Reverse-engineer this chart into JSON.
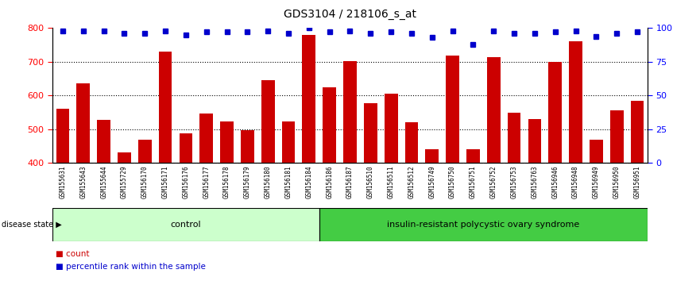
{
  "title": "GDS3104 / 218106_s_at",
  "categories": [
    "GSM155631",
    "GSM155643",
    "GSM155644",
    "GSM155729",
    "GSM156170",
    "GSM156171",
    "GSM156176",
    "GSM156177",
    "GSM156178",
    "GSM156179",
    "GSM156180",
    "GSM156181",
    "GSM156184",
    "GSM156186",
    "GSM156187",
    "GSM156510",
    "GSM156511",
    "GSM156512",
    "GSM156749",
    "GSM156750",
    "GSM156751",
    "GSM156752",
    "GSM156753",
    "GSM156763",
    "GSM156946",
    "GSM156948",
    "GSM156949",
    "GSM156950",
    "GSM156951"
  ],
  "bar_values": [
    560,
    635,
    527,
    432,
    470,
    730,
    487,
    547,
    523,
    497,
    645,
    523,
    780,
    625,
    703,
    578,
    605,
    520,
    440,
    718,
    440,
    715,
    550,
    530,
    700,
    760,
    470,
    557,
    585
  ],
  "percentile_values": [
    98,
    98,
    98,
    96,
    96,
    98,
    95,
    97,
    97,
    97,
    98,
    96,
    100,
    97,
    98,
    96,
    97,
    96,
    93,
    98,
    88,
    98,
    96,
    96,
    97,
    98,
    94,
    96,
    97
  ],
  "control_count": 13,
  "disease_label": "insulin-resistant polycystic ovary syndrome",
  "control_label": "control",
  "disease_state_label": "disease state",
  "ylim_left": [
    400,
    800
  ],
  "ylim_right": [
    0,
    100
  ],
  "bar_color": "#cc0000",
  "percentile_color": "#0000cc",
  "plot_bg": "#ffffff",
  "tick_bg": "#d8d8d8",
  "control_bg": "#ccffcc",
  "disease_bg": "#44cc44",
  "yticks_left": [
    400,
    500,
    600,
    700,
    800
  ],
  "yticks_right": [
    0,
    25,
    50,
    75,
    100
  ],
  "grid_lines": [
    500,
    600,
    700
  ],
  "legend_count_label": "count",
  "legend_percentile_label": "percentile rank within the sample"
}
